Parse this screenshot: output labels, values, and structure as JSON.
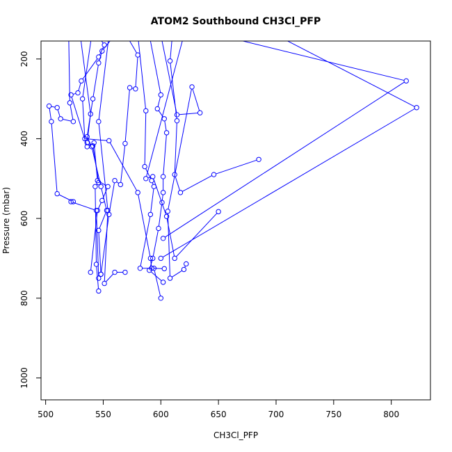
{
  "chart_data": {
    "type": "line",
    "title": "ATOM2 Southbound CH3Cl_PFP",
    "xlabel": "CH3Cl_PFP",
    "ylabel": "Pressure (mbar)",
    "xlim": [
      496,
      834
    ],
    "ylim": [
      1055,
      155
    ],
    "y_reversed": true,
    "grid": false,
    "legend": "none",
    "series_color": "#0000ff",
    "x_ticks": [
      500,
      550,
      600,
      650,
      700,
      750,
      800
    ],
    "y_ticks": [
      200,
      400,
      600,
      800,
      1000
    ],
    "series": [
      {
        "points": [
          [
            560,
            140
          ],
          [
            549,
            180
          ],
          [
            546,
            210
          ],
          [
            541,
            300
          ],
          [
            536,
            395
          ],
          [
            540,
            420
          ],
          [
            548,
            520
          ],
          [
            553,
            580
          ],
          [
            546,
            630
          ],
          [
            548,
            740
          ]
        ]
      },
      {
        "points": [
          [
            570,
            140
          ],
          [
            580,
            190
          ],
          [
            578,
            275
          ],
          [
            573,
            272
          ],
          [
            569,
            412
          ],
          [
            565,
            515
          ],
          [
            560,
            505
          ],
          [
            555,
            590
          ],
          [
            548,
            740
          ]
        ]
      },
      {
        "points": [
          [
            590,
            140
          ],
          [
            600,
            290
          ],
          [
            597,
            325
          ],
          [
            603,
            350
          ],
          [
            605,
            385
          ],
          [
            602,
            495
          ],
          [
            602,
            535
          ],
          [
            601,
            560
          ],
          [
            598,
            625
          ],
          [
            593,
            700
          ],
          [
            590,
            730
          ],
          [
            602,
            760
          ]
        ]
      },
      {
        "points": [
          [
            545,
            140
          ],
          [
            551,
            165
          ],
          [
            546,
            195
          ],
          [
            531,
            255
          ],
          [
            528,
            285
          ],
          [
            522,
            290
          ],
          [
            536,
            420
          ],
          [
            542,
            410
          ],
          [
            545,
            505
          ],
          [
            554,
            520
          ],
          [
            549,
            555
          ],
          [
            545,
            580
          ],
          [
            539,
            735
          ]
        ]
      },
      {
        "points": [
          [
            610,
            140
          ],
          [
            608,
            205
          ],
          [
            614,
            355
          ],
          [
            612,
            490
          ],
          [
            617,
            535
          ],
          [
            646,
            490
          ],
          [
            685,
            452
          ]
        ]
      },
      {
        "points": [
          [
            700,
            140
          ],
          [
            822,
            322
          ],
          [
            600,
            700
          ]
        ]
      },
      {
        "points": [
          [
            650,
            140
          ],
          [
            813,
            255
          ],
          [
            602,
            650
          ]
        ]
      },
      {
        "points": [
          [
            520,
            140
          ],
          [
            521,
            310
          ],
          [
            524,
            357
          ],
          [
            513,
            350
          ],
          [
            510,
            322
          ],
          [
            503,
            318
          ],
          [
            505,
            357
          ],
          [
            510,
            538
          ],
          [
            524,
            558
          ],
          [
            522,
            558
          ],
          [
            544,
            580
          ],
          [
            546,
            750
          ]
        ]
      },
      {
        "points": [
          [
            530,
            140
          ],
          [
            539,
            338
          ],
          [
            536,
            410
          ],
          [
            541,
            418
          ],
          [
            546,
            510
          ],
          [
            543,
            520
          ],
          [
            544,
            715
          ],
          [
            546,
            782
          ]
        ]
      },
      {
        "points": [
          [
            580,
            140
          ],
          [
            587,
            330
          ],
          [
            586,
            470
          ],
          [
            592,
            505
          ],
          [
            594,
            520
          ],
          [
            591,
            590
          ],
          [
            582,
            725
          ],
          [
            594,
            725
          ],
          [
            600,
            800
          ]
        ]
      },
      {
        "points": [
          [
            600,
            140
          ],
          [
            614,
            340
          ],
          [
            634,
            335
          ],
          [
            627,
            270
          ],
          [
            606,
            582
          ],
          [
            608,
            750
          ],
          [
            620,
            728
          ],
          [
            622,
            714
          ]
        ]
      },
      {
        "points": [
          [
            555,
            140
          ],
          [
            546,
            357
          ],
          [
            554,
            580
          ],
          [
            551,
            763
          ],
          [
            560,
            735
          ],
          [
            569,
            735
          ]
        ]
      },
      {
        "points": [
          [
            540,
            140
          ],
          [
            532,
            300
          ],
          [
            534,
            400
          ],
          [
            555,
            405
          ],
          [
            580,
            535
          ],
          [
            591,
            700
          ],
          [
            592,
            725
          ],
          [
            603,
            726
          ]
        ]
      },
      {
        "points": [
          [
            620,
            140
          ],
          [
            587,
            500
          ],
          [
            593,
            495
          ],
          [
            605,
            595
          ],
          [
            612,
            700
          ],
          [
            650,
            583
          ]
        ]
      }
    ]
  }
}
